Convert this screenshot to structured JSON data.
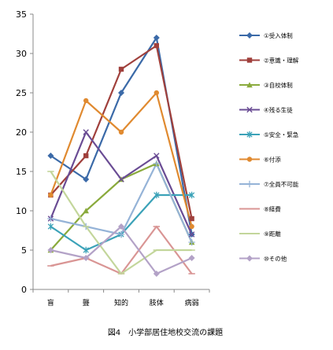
{
  "chart_data": {
    "type": "line",
    "categories": [
      "盲",
      "聾",
      "知的",
      "肢体",
      "病弱"
    ],
    "ylim": [
      0,
      35
    ],
    "yticks": [
      0,
      5,
      10,
      15,
      20,
      25,
      30,
      35
    ],
    "grid": false,
    "legend_position": "right",
    "caption": "図4　小学部居住地校交流の課題",
    "series": [
      {
        "name": "①受入体制",
        "values": [
          17,
          14,
          25,
          32,
          7
        ],
        "color": "#3B6AA8",
        "marker": "diamond"
      },
      {
        "name": "②意識・理解",
        "values": [
          12,
          17,
          28,
          31,
          9
        ],
        "color": "#A0403C",
        "marker": "square"
      },
      {
        "name": "③自校体制",
        "values": [
          5,
          10,
          14,
          16,
          6
        ],
        "color": "#8AAA3C",
        "marker": "triangle"
      },
      {
        "name": "④残る生徒",
        "values": [
          9,
          20,
          14,
          17,
          7
        ],
        "color": "#6A4C94",
        "marker": "x"
      },
      {
        "name": "⑤安全・緊急",
        "values": [
          8,
          5,
          7,
          12,
          12
        ],
        "color": "#3BA2B8",
        "marker": "star"
      },
      {
        "name": "⑥付添",
        "values": [
          12,
          24,
          20,
          25,
          8
        ],
        "color": "#E08A30",
        "marker": "circle"
      },
      {
        "name": "⑦全員不可能",
        "values": [
          9,
          8,
          7,
          16,
          6
        ],
        "color": "#95B3D7",
        "marker": "plus"
      },
      {
        "name": "⑧経費",
        "values": [
          3,
          4,
          2,
          8,
          2
        ],
        "color": "#D99594",
        "marker": "dash"
      },
      {
        "name": "⑨距離",
        "values": [
          15,
          8,
          2,
          5,
          5
        ],
        "color": "#C3D69B",
        "marker": "dash"
      },
      {
        "name": "⑩その他",
        "values": [
          5,
          4,
          8,
          2,
          4
        ],
        "color": "#B3A2C7",
        "marker": "diamond"
      }
    ]
  }
}
